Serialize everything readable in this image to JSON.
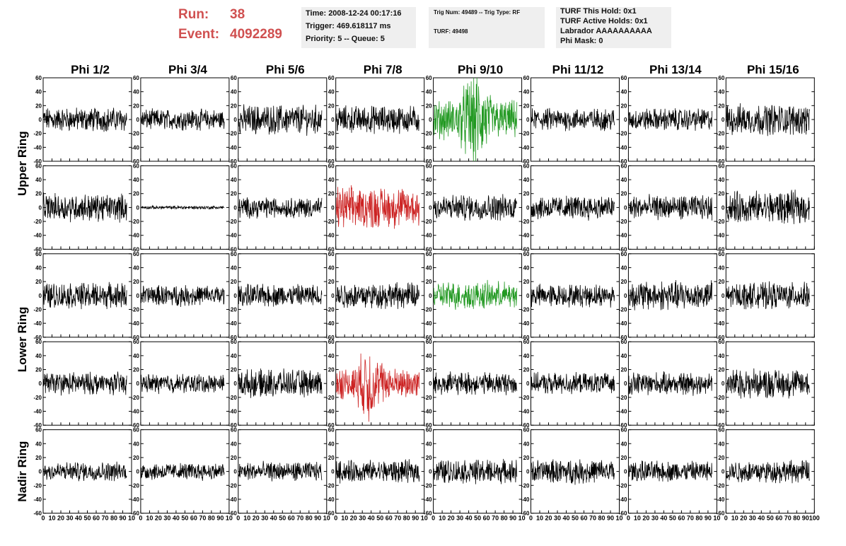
{
  "header": {
    "run_label": "Run:",
    "run_value": "38",
    "event_label": "Event:",
    "event_value": "4092289"
  },
  "info_panels": {
    "time": "Time: 2008-12-24 00:17:16",
    "trigger": "Trigger: 469.618117 ms",
    "priority": "Priority: 5 -- Queue: 5",
    "trig_num": "Trig Num: 49489 -- Trig Type: RF",
    "turf": "TURF: 49498",
    "turf_this_hold": "TURF This Hold: 0x1",
    "turf_active_holds": "TURF Active Holds: 0x1",
    "labrador": "Labrador AAAAAAAAAA",
    "phi_mask": "Phi Mask: 0"
  },
  "chart_data": {
    "type": "line",
    "layout": "grid of waveform panels, 5 rows x 8 columns",
    "column_labels": [
      "Phi 1/2",
      "Phi 3/4",
      "Phi 5/6",
      "Phi 7/8",
      "Phi 9/10",
      "Phi 11/12",
      "Phi 13/14",
      "Phi 15/16"
    ],
    "ring_labels": [
      {
        "name": "Upper Ring",
        "rows": [
          0,
          1
        ]
      },
      {
        "name": "Lower Ring",
        "rows": [
          2,
          3
        ]
      },
      {
        "name": "Nadir Ring",
        "rows": [
          4
        ]
      }
    ],
    "xlim": [
      0,
      100
    ],
    "ylim": [
      -60,
      60
    ],
    "x_tick_values": [
      0,
      10,
      20,
      30,
      40,
      50,
      60,
      70,
      80,
      90,
      100
    ],
    "x_tick_labels_repeated": [
      "0",
      "10",
      "20",
      "30",
      "40",
      "50",
      "60",
      "70",
      "80",
      "90",
      "10"
    ],
    "x_tick_labels_last": [
      "0",
      "10",
      "20",
      "30",
      "40",
      "50",
      "60",
      "70",
      "80",
      "90",
      "100"
    ],
    "y_tick_values": [
      60,
      40,
      20,
      0,
      -20,
      -40,
      -60
    ],
    "y_tick_labels": [
      "60",
      "40",
      "20",
      "0",
      "-20",
      "-40",
      "-60"
    ],
    "colors": {
      "normal": "#000000",
      "red": "#cc2222",
      "green": "#229922"
    },
    "panels": [
      {
        "row": 0,
        "col": 0,
        "amplitude": 14,
        "color": "normal"
      },
      {
        "row": 0,
        "col": 1,
        "amplitude": 12,
        "color": "normal"
      },
      {
        "row": 0,
        "col": 2,
        "amplitude": 17,
        "color": "normal"
      },
      {
        "row": 0,
        "col": 3,
        "amplitude": 16,
        "color": "normal"
      },
      {
        "row": 0,
        "col": 4,
        "amplitude": 22,
        "color": "green",
        "burst": {
          "center": 47,
          "width": 14,
          "amplitude": 58
        }
      },
      {
        "row": 0,
        "col": 5,
        "amplitude": 13,
        "color": "normal"
      },
      {
        "row": 0,
        "col": 6,
        "amplitude": 13,
        "color": "normal"
      },
      {
        "row": 0,
        "col": 7,
        "amplitude": 18,
        "color": "normal"
      },
      {
        "row": 1,
        "col": 0,
        "amplitude": 16,
        "color": "normal"
      },
      {
        "row": 1,
        "col": 1,
        "amplitude": 2,
        "color": "normal"
      },
      {
        "row": 1,
        "col": 2,
        "amplitude": 12,
        "color": "normal"
      },
      {
        "row": 1,
        "col": 3,
        "amplitude": 24,
        "color": "red"
      },
      {
        "row": 1,
        "col": 4,
        "amplitude": 15,
        "color": "normal"
      },
      {
        "row": 1,
        "col": 5,
        "amplitude": 14,
        "color": "normal"
      },
      {
        "row": 1,
        "col": 6,
        "amplitude": 14,
        "color": "normal"
      },
      {
        "row": 1,
        "col": 7,
        "amplitude": 19,
        "color": "normal"
      },
      {
        "row": 2,
        "col": 0,
        "amplitude": 15,
        "color": "normal"
      },
      {
        "row": 2,
        "col": 1,
        "amplitude": 12,
        "color": "normal"
      },
      {
        "row": 2,
        "col": 2,
        "amplitude": 13,
        "color": "normal"
      },
      {
        "row": 2,
        "col": 3,
        "amplitude": 15,
        "color": "normal"
      },
      {
        "row": 2,
        "col": 4,
        "amplitude": 16,
        "color": "green"
      },
      {
        "row": 2,
        "col": 5,
        "amplitude": 13,
        "color": "normal"
      },
      {
        "row": 2,
        "col": 6,
        "amplitude": 17,
        "color": "normal"
      },
      {
        "row": 2,
        "col": 7,
        "amplitude": 15,
        "color": "normal"
      },
      {
        "row": 3,
        "col": 0,
        "amplitude": 13,
        "color": "normal"
      },
      {
        "row": 3,
        "col": 1,
        "amplitude": 11,
        "color": "normal"
      },
      {
        "row": 3,
        "col": 2,
        "amplitude": 16,
        "color": "normal"
      },
      {
        "row": 3,
        "col": 3,
        "amplitude": 18,
        "color": "red",
        "burst": {
          "center": 38,
          "width": 12,
          "amplitude": 45
        }
      },
      {
        "row": 3,
        "col": 4,
        "amplitude": 13,
        "color": "normal"
      },
      {
        "row": 3,
        "col": 5,
        "amplitude": 12,
        "color": "normal"
      },
      {
        "row": 3,
        "col": 6,
        "amplitude": 13,
        "color": "normal"
      },
      {
        "row": 3,
        "col": 7,
        "amplitude": 17,
        "color": "normal"
      },
      {
        "row": 4,
        "col": 0,
        "amplitude": 11,
        "color": "normal"
      },
      {
        "row": 4,
        "col": 1,
        "amplitude": 10,
        "color": "normal"
      },
      {
        "row": 4,
        "col": 2,
        "amplitude": 11,
        "color": "normal"
      },
      {
        "row": 4,
        "col": 3,
        "amplitude": 13,
        "color": "normal"
      },
      {
        "row": 4,
        "col": 4,
        "amplitude": 14,
        "color": "normal"
      },
      {
        "row": 4,
        "col": 5,
        "amplitude": 14,
        "color": "normal"
      },
      {
        "row": 4,
        "col": 6,
        "amplitude": 12,
        "color": "normal"
      },
      {
        "row": 4,
        "col": 7,
        "amplitude": 13,
        "color": "normal"
      }
    ]
  }
}
